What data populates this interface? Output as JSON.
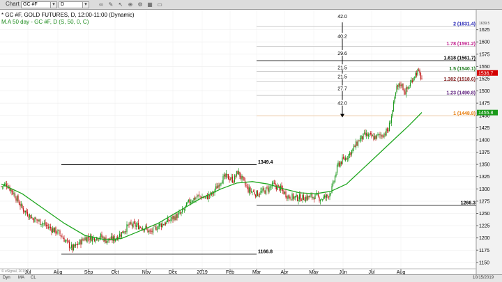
{
  "toolbar": {
    "app_label": "Chart",
    "symbol_value": "GC #F",
    "interval_value": "D"
  },
  "chart_info": {
    "line1": "* GC #F, GOLD FUTURES, D, 12:00-11:00 (Dynamic)",
    "line2": "M.A 50 day - GC #F, D (S, 50, 0, C)"
  },
  "colors": {
    "up": "#1f9a1f",
    "down": "#c01818",
    "ma": "#1fa61f",
    "fib_orange": "#e87d0d",
    "fib_purple": "#5a1a7a",
    "fib_darkred": "#801818",
    "fib_green": "#1a7a1a",
    "fib_magenta": "#c01a8a",
    "fib_blue": "#1a1ab0"
  },
  "chart_data": {
    "type": "candlestick",
    "title": "GOLD FUTURES",
    "x_ticks": [
      "Jul",
      "Aug",
      "Sep",
      "Oct",
      "Nov",
      "Dec",
      "2019",
      "Feb",
      "Mar",
      "Apr",
      "May",
      "Jun",
      "Jul",
      "Aug"
    ],
    "y_ticks": [
      1150,
      1175,
      1200,
      1225,
      1250,
      1275,
      1300,
      1325,
      1350,
      1375,
      1400,
      1425,
      1450,
      1475,
      1500,
      1525,
      1550,
      1575,
      1600,
      1625
    ],
    "top_axis_tag": "1639.5",
    "ylim": [
      1137,
      1660
    ],
    "price_path": [
      [
        0,
        1305
      ],
      [
        5,
        1310
      ],
      [
        12,
        1290
      ],
      [
        20,
        1260
      ],
      [
        30,
        1240
      ],
      [
        38,
        1232
      ],
      [
        45,
        1222
      ],
      [
        55,
        1210
      ],
      [
        62,
        1192
      ],
      [
        68,
        1178
      ],
      [
        72,
        1185
      ],
      [
        80,
        1200
      ],
      [
        88,
        1200
      ],
      [
        95,
        1203
      ],
      [
        100,
        1195
      ],
      [
        108,
        1198
      ],
      [
        115,
        1210
      ],
      [
        122,
        1226
      ],
      [
        130,
        1225
      ],
      [
        138,
        1220
      ],
      [
        142,
        1210
      ],
      [
        150,
        1225
      ],
      [
        158,
        1232
      ],
      [
        165,
        1242
      ],
      [
        172,
        1250
      ],
      [
        180,
        1275
      ],
      [
        188,
        1285
      ],
      [
        195,
        1282
      ],
      [
        202,
        1290
      ],
      [
        210,
        1318
      ],
      [
        215,
        1325
      ],
      [
        222,
        1318
      ],
      [
        226,
        1335
      ],
      [
        228,
        1328
      ],
      [
        232,
        1312
      ],
      [
        236,
        1298
      ],
      [
        244,
        1290
      ],
      [
        252,
        1296
      ],
      [
        260,
        1308
      ],
      [
        266,
        1302
      ],
      [
        274,
        1285
      ],
      [
        282,
        1282
      ],
      [
        290,
        1282
      ],
      [
        300,
        1285
      ],
      [
        306,
        1280
      ],
      [
        312,
        1285
      ],
      [
        316,
        1300
      ],
      [
        322,
        1350
      ],
      [
        330,
        1365
      ],
      [
        336,
        1380
      ],
      [
        342,
        1400
      ],
      [
        348,
        1410
      ],
      [
        356,
        1405
      ],
      [
        364,
        1410
      ],
      [
        370,
        1420
      ],
      [
        374,
        1460
      ],
      [
        378,
        1505
      ],
      [
        382,
        1515
      ],
      [
        386,
        1498
      ],
      [
        390,
        1510
      ],
      [
        394,
        1530
      ],
      [
        398,
        1540
      ],
      [
        402,
        1525
      ]
    ],
    "last_price": "1536.7",
    "ma_50": {
      "name": "M.A 50 day",
      "last_value": "1455.8",
      "points": [
        [
          0,
          1310
        ],
        [
          20,
          1290
        ],
        [
          40,
          1260
        ],
        [
          60,
          1230
        ],
        [
          80,
          1205
        ],
        [
          100,
          1196
        ],
        [
          115,
          1199
        ],
        [
          130,
          1212
        ],
        [
          150,
          1230
        ],
        [
          170,
          1255
        ],
        [
          190,
          1280
        ],
        [
          210,
          1300
        ],
        [
          225,
          1312
        ],
        [
          240,
          1315
        ],
        [
          255,
          1310
        ],
        [
          270,
          1300
        ],
        [
          285,
          1292
        ],
        [
          300,
          1290
        ],
        [
          315,
          1295
        ],
        [
          330,
          1310
        ],
        [
          345,
          1340
        ],
        [
          360,
          1370
        ],
        [
          375,
          1400
        ],
        [
          390,
          1430
        ],
        [
          402,
          1456
        ]
      ]
    },
    "levels": [
      {
        "label": "1349.4",
        "value": 1349.4
      },
      {
        "label": "1166.8",
        "value": 1166.8
      },
      {
        "label": "1266.3",
        "value": 1266.3
      },
      {
        "label": "1.618 (1561.7)",
        "value": 1561.7
      },
      {
        "label": "1.5 (1540.1)",
        "value": 1540.1
      },
      {
        "label": "1.382 (1518.6)",
        "value": 1518.6
      },
      {
        "label": "1.23 (1490.8)",
        "value": 1490.8
      },
      {
        "label": "1 (1448.8)",
        "value": 1448.8
      },
      {
        "label": "1.78 (1591.2)",
        "value": 1591.2
      },
      {
        "label": "2 (1631.4)",
        "value": 1631.4
      }
    ],
    "arrow_labels": [
      "42.0",
      "40.2",
      "29.6",
      "21.5",
      "21.5",
      "27.7",
      "42.0"
    ]
  },
  "statusbar": {
    "tabs": [
      "Dyn",
      "MA",
      "CL"
    ],
    "right_text": "10/15/2019"
  },
  "watermark": "© eSignal, 2019"
}
